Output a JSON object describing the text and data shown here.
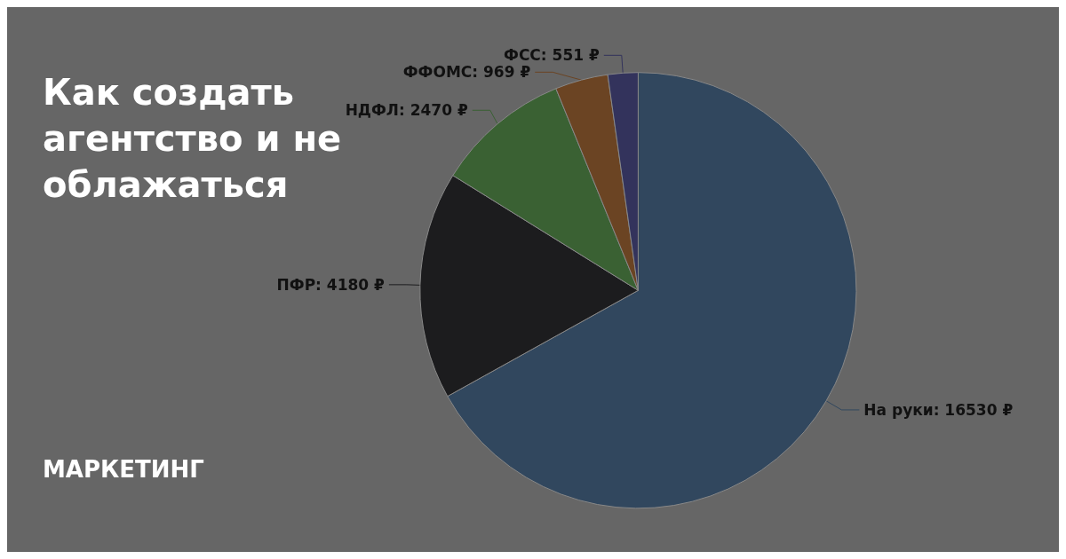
{
  "chart_data": {
    "type": "pie",
    "title": "Как создать агентство и не облажаться",
    "annotations": [
      "МАРКЕТИНГ"
    ],
    "categories": [
      "На руки",
      "ПФР",
      "НДФЛ",
      "ФФОМС",
      "ФСС"
    ],
    "values": [
      16530,
      4180,
      2470,
      969,
      551
    ],
    "value_labels": [
      "16530 ₽",
      "4180 ₽",
      "2470 ₽",
      "969 ₽",
      "551 ₽"
    ],
    "colors": [
      "#31475e",
      "#1c1c1e",
      "#3a6133",
      "#6b4423",
      "#33335c"
    ],
    "legend": false
  }
}
